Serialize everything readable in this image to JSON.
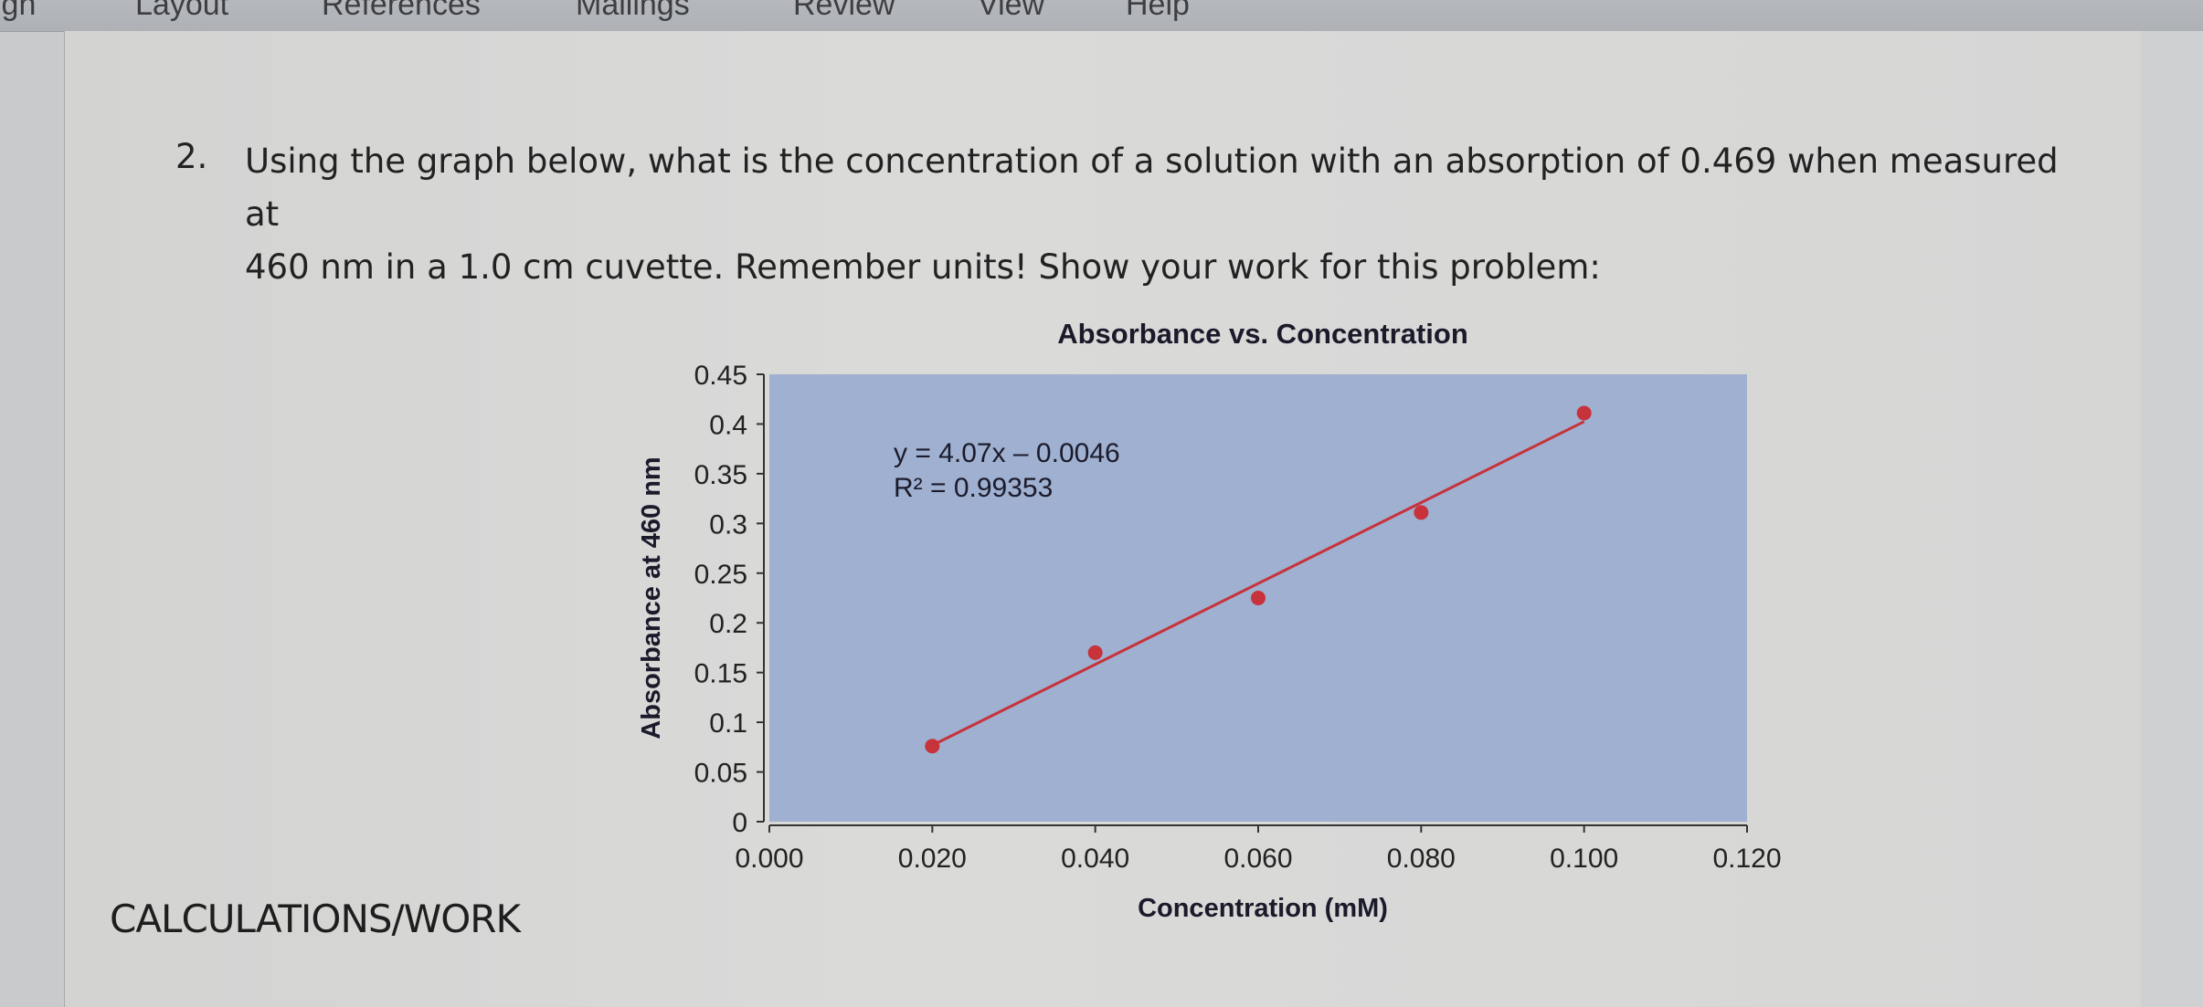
{
  "ribbon": {
    "tabs": [
      "ign",
      "Layout",
      "References",
      "Mailings",
      "Review",
      "View",
      "Help"
    ]
  },
  "question": {
    "number": "2.",
    "line1": "Using the graph below, what is the concentration of a solution with an absorption of 0.469 when measured at",
    "line2": "460 nm in a 1.0 cm cuvette. Remember units! Show your work for this problem:"
  },
  "footer": {
    "calculations_label": "CALCULATIONS/WORK"
  },
  "chart_data": {
    "type": "scatter",
    "title": "Absorbance vs. Concentration",
    "xlabel": "Concentration (mM)",
    "ylabel": "Absorbance at 460 nm",
    "xlim": [
      0,
      0.12
    ],
    "ylim": [
      0,
      0.45
    ],
    "x_ticks": [
      "0.000",
      "0.020",
      "0.040",
      "0.060",
      "0.080",
      "0.100",
      "0.120"
    ],
    "y_ticks": [
      "0",
      "0.05",
      "0.1",
      "0.15",
      "0.2",
      "0.25",
      "0.3",
      "0.35",
      "0.4",
      "0.45"
    ],
    "points": [
      {
        "x": 0.02,
        "y": 0.076
      },
      {
        "x": 0.04,
        "y": 0.17
      },
      {
        "x": 0.06,
        "y": 0.225
      },
      {
        "x": 0.08,
        "y": 0.311
      },
      {
        "x": 0.1,
        "y": 0.411
      }
    ],
    "trendline": {
      "slope": 4.07,
      "intercept": -0.0046
    },
    "equation_label": "y = 4.07x – 0.0046",
    "r2_label": "R² = 0.99353",
    "grid": false,
    "legend": "none",
    "colors": {
      "plot_bg": "#9fb0d0",
      "marker": "#c8323a",
      "line": "#c8323a"
    }
  }
}
